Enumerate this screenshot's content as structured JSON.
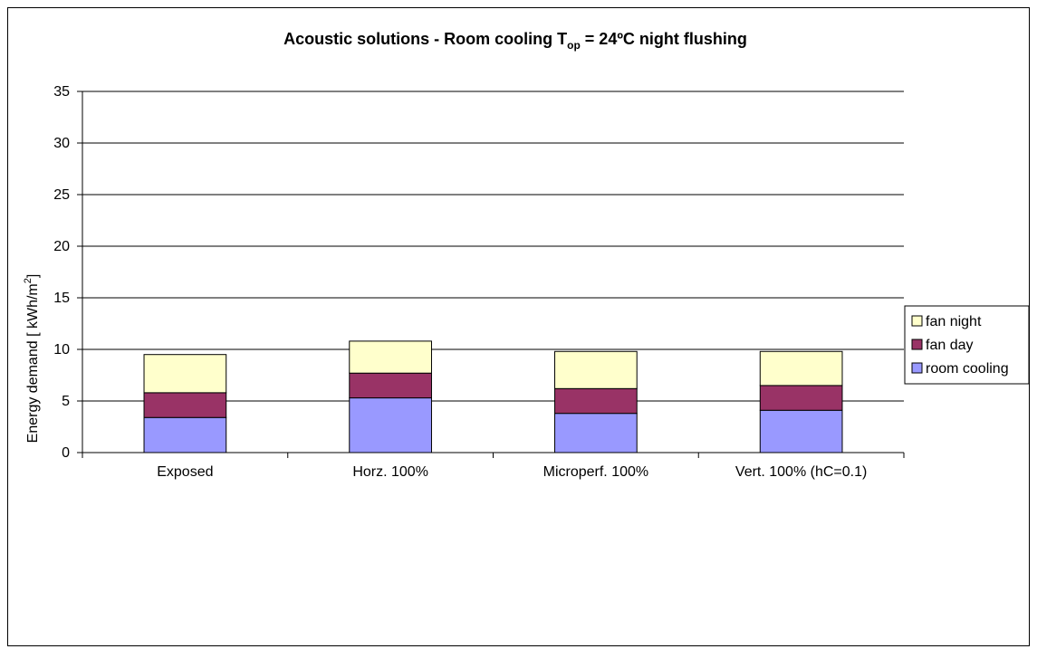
{
  "chart_data": {
    "type": "bar",
    "stacked": true,
    "title": "Acoustic solutions - Room cooling T",
    "title_subscript": "op",
    "title_suffix": " = 24ºC night flushing",
    "ylabel": "Energy demand [ kWh/m",
    "ylabel_superscript": "2",
    "ylabel_suffix": "]",
    "xlabel": "",
    "ylim": [
      0,
      35
    ],
    "yticks": [
      0,
      5,
      10,
      15,
      20,
      25,
      30,
      35
    ],
    "grid": true,
    "legend_position": "right",
    "categories": [
      "Exposed",
      "Horz. 100%",
      "Microperf. 100%",
      "Vert. 100% (hC=0.1)"
    ],
    "series": [
      {
        "name": "room cooling",
        "color": "#9999ff",
        "values": [
          3.4,
          5.3,
          3.8,
          4.1
        ]
      },
      {
        "name": "fan day",
        "color": "#993366",
        "values": [
          2.4,
          2.4,
          2.4,
          2.4
        ]
      },
      {
        "name": "fan night",
        "color": "#ffffcc",
        "values": [
          3.7,
          3.1,
          3.6,
          3.3
        ]
      }
    ]
  }
}
